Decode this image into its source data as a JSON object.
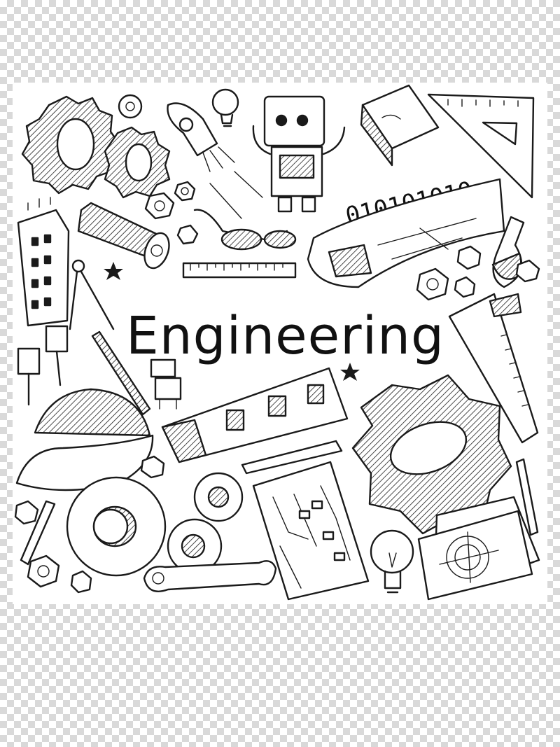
{
  "illustration": {
    "title": "Engineering",
    "binary_label": "010101010",
    "ink_color": "#1a1a1a",
    "background": "transparency-checkerboard",
    "doodles": [
      "gear-icon",
      "rocket-icon",
      "robot-icon",
      "lightbulb-icon",
      "book-icon",
      "set-square-icon",
      "hex-nut-icon",
      "pipe-icon",
      "building-icon",
      "glasses-icon",
      "ruler-icon",
      "blueprint-icon",
      "flask-icon",
      "compass-icon",
      "pushpin-icon",
      "caliper-icon",
      "hard-hat-icon",
      "pen-icon",
      "circuit-board-icon",
      "wrench-icon",
      "star-icon",
      "drawing-icon"
    ]
  }
}
